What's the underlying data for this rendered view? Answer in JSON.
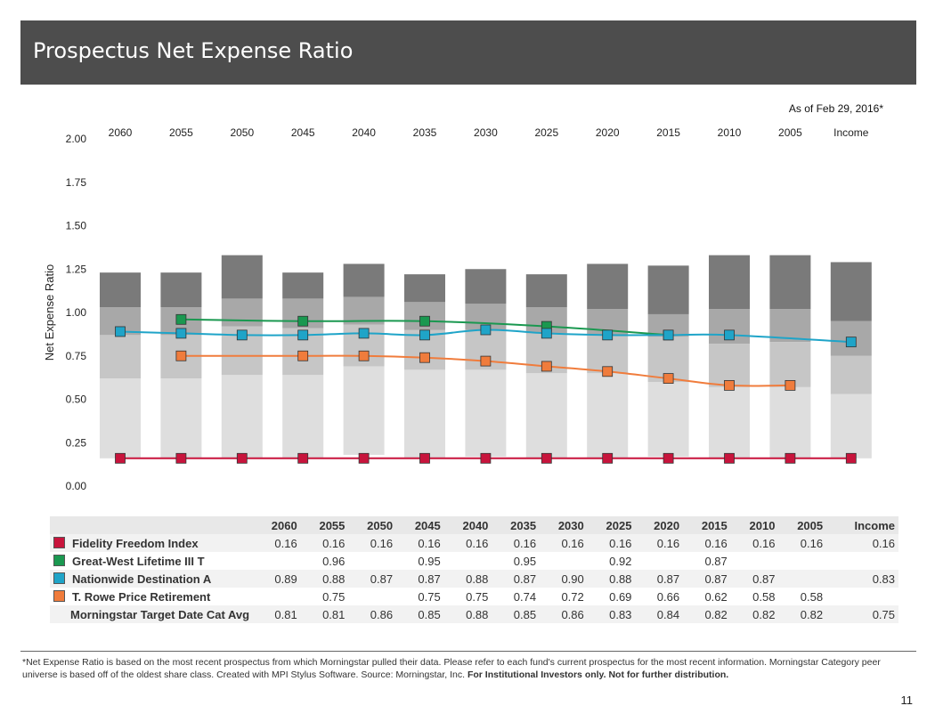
{
  "title": "Prospectus Net Expense Ratio",
  "as_of": "As of Feb 29, 2016*",
  "page_number": "11",
  "footnote_plain": "*Net Expense Ratio is based on the most recent prospectus from which Morningstar pulled their data. Please refer to each fund's current prospectus for the most recent information. Morningstar Category peer universe is based off of the oldest share class. Created with MPI Stylus Software.  Source:  Morningstar, Inc. ",
  "footnote_bold": "For Institutional Investors only. Not for further distribution.",
  "colors": {
    "header_bg": "#4d4d4d",
    "fidelity": "#c8143c",
    "greatwest": "#1a9850",
    "nationwide": "#1fa4c8",
    "trowe": "#f07c3c",
    "bar_light": "#dedede",
    "bar_mid": "#b4b4b4",
    "bar_dark": "#7a7a7a"
  },
  "chart_data": {
    "type": "line",
    "ylabel": "Net Expense Ratio",
    "ylim": [
      0,
      2
    ],
    "yticks": [
      "0.00",
      "0.25",
      "0.50",
      "0.75",
      "1.00",
      "1.25",
      "1.50",
      "1.75",
      "2.00"
    ],
    "categories": [
      "2060",
      "2055",
      "2050",
      "2045",
      "2040",
      "2035",
      "2030",
      "2025",
      "2020",
      "2015",
      "2010",
      "2005",
      "Income"
    ],
    "grid": false,
    "background_bars": {
      "description_levels": [
        "low",
        "q1",
        "q2",
        "high"
      ],
      "values": [
        [
          0.16,
          0.62,
          0.87,
          1.03,
          1.23
        ],
        [
          0.16,
          0.62,
          0.87,
          1.03,
          1.23
        ],
        [
          0.16,
          0.64,
          0.92,
          1.08,
          1.33
        ],
        [
          0.16,
          0.64,
          0.91,
          1.08,
          1.23
        ],
        [
          0.18,
          0.69,
          0.93,
          1.09,
          1.28
        ],
        [
          0.16,
          0.67,
          0.9,
          1.06,
          1.22
        ],
        [
          0.17,
          0.67,
          0.9,
          1.05,
          1.25
        ],
        [
          0.16,
          0.65,
          0.88,
          1.03,
          1.22
        ],
        [
          0.16,
          0.65,
          0.87,
          1.02,
          1.28
        ],
        [
          0.17,
          0.6,
          0.86,
          0.99,
          1.27
        ],
        [
          0.16,
          0.57,
          0.82,
          1.02,
          1.33
        ],
        [
          0.16,
          0.57,
          0.83,
          1.02,
          1.33
        ],
        [
          0.16,
          0.53,
          0.75,
          0.95,
          1.29
        ]
      ]
    },
    "series": [
      {
        "name": "Fidelity Freedom Index",
        "color": "#c8143c",
        "values": [
          0.16,
          0.16,
          0.16,
          0.16,
          0.16,
          0.16,
          0.16,
          0.16,
          0.16,
          0.16,
          0.16,
          0.16,
          0.16
        ]
      },
      {
        "name": "Great-West Lifetime III T",
        "color": "#1a9850",
        "values": [
          null,
          0.96,
          null,
          0.95,
          null,
          0.95,
          null,
          0.92,
          null,
          0.87,
          null,
          null,
          null
        ]
      },
      {
        "name": "Nationwide Destination A",
        "color": "#1fa4c8",
        "values": [
          0.89,
          0.88,
          0.87,
          0.87,
          0.88,
          0.87,
          0.9,
          0.88,
          0.87,
          0.87,
          0.87,
          null,
          0.83
        ]
      },
      {
        "name": "T. Rowe Price Retirement",
        "color": "#f07c3c",
        "values": [
          null,
          0.75,
          null,
          0.75,
          0.75,
          0.74,
          0.72,
          0.69,
          0.66,
          0.62,
          0.58,
          0.58,
          null
        ]
      },
      {
        "name": "Morningstar Target Date Cat Avg",
        "color": null,
        "values": [
          0.81,
          0.81,
          0.86,
          0.85,
          0.88,
          0.85,
          0.86,
          0.83,
          0.84,
          0.82,
          0.82,
          0.82,
          0.75
        ]
      }
    ]
  },
  "table": {
    "headers": [
      "2060",
      "2055",
      "2050",
      "2045",
      "2040",
      "2035",
      "2030",
      "2025",
      "2020",
      "2015",
      "2010",
      "2005",
      "Income"
    ],
    "rows": [
      {
        "name": "Fidelity Freedom Index",
        "color": "#c8143c",
        "cells": [
          "0.16",
          "0.16",
          "0.16",
          "0.16",
          "0.16",
          "0.16",
          "0.16",
          "0.16",
          "0.16",
          "0.16",
          "0.16",
          "0.16",
          "0.16"
        ]
      },
      {
        "name": "Great-West Lifetime III T",
        "color": "#1a9850",
        "cells": [
          "",
          "0.96",
          "",
          "0.95",
          "",
          "0.95",
          "",
          "0.92",
          "",
          "0.87",
          "",
          "",
          ""
        ]
      },
      {
        "name": "Nationwide Destination A",
        "color": "#1fa4c8",
        "cells": [
          "0.89",
          "0.88",
          "0.87",
          "0.87",
          "0.88",
          "0.87",
          "0.90",
          "0.88",
          "0.87",
          "0.87",
          "0.87",
          "",
          "0.83"
        ]
      },
      {
        "name": "T. Rowe Price Retirement",
        "color": "#f07c3c",
        "cells": [
          "",
          "0.75",
          "",
          "0.75",
          "0.75",
          "0.74",
          "0.72",
          "0.69",
          "0.66",
          "0.62",
          "0.58",
          "0.58",
          ""
        ]
      },
      {
        "name": "Morningstar Target Date Cat Avg",
        "color": "",
        "cells": [
          "0.81",
          "0.81",
          "0.86",
          "0.85",
          "0.88",
          "0.85",
          "0.86",
          "0.83",
          "0.84",
          "0.82",
          "0.82",
          "0.82",
          "0.75"
        ]
      }
    ]
  }
}
